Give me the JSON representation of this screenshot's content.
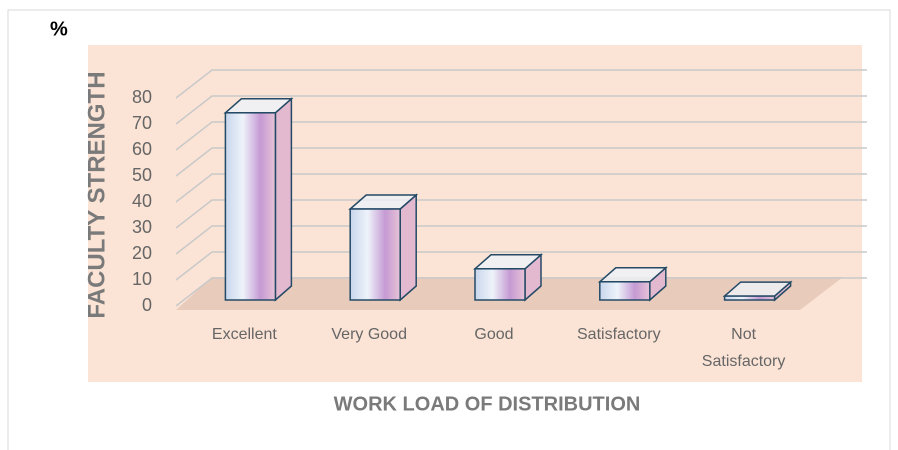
{
  "chart_data": {
    "type": "bar",
    "unit_label": "%",
    "y_label": "FACULTY STRENGTH",
    "x_label": "WORK LOAD OF DISTRIBUTION",
    "categories": [
      "Excellent",
      "Very Good",
      "Good",
      "Satisfactory",
      "Not Satisfactory"
    ],
    "values": [
      72,
      35,
      12,
      7,
      1.5
    ],
    "ylim": [
      0,
      80
    ],
    "yticks": [
      0,
      10,
      20,
      30,
      40,
      50,
      60,
      70,
      80
    ],
    "grid": true
  }
}
